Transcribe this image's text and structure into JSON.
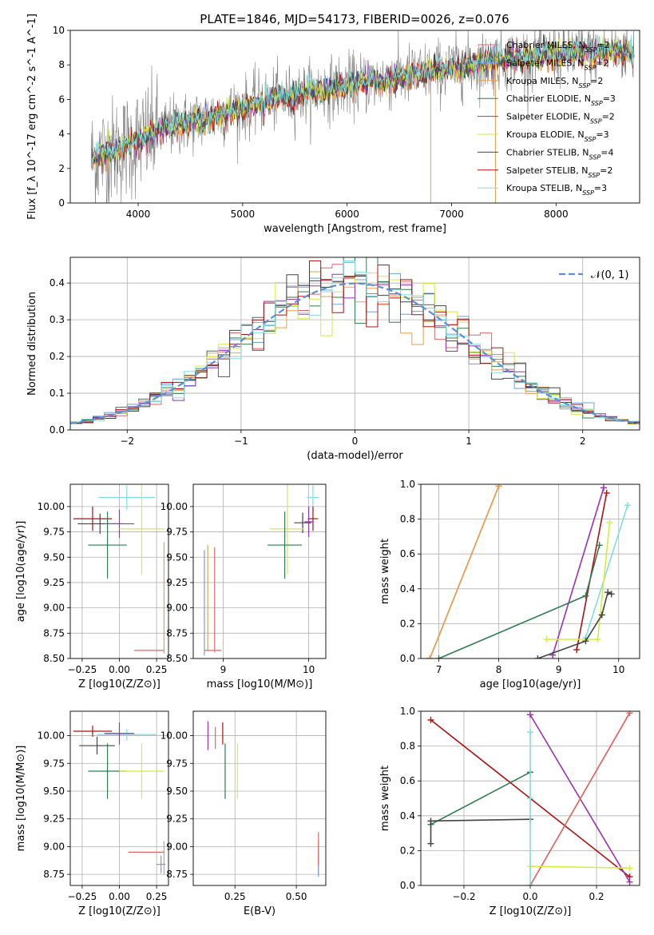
{
  "figure": {
    "title": "PLATE=1846, MJD=54173, FIBERID=0026, z=0.076",
    "colors": {
      "chabrier_miles": "#e06666",
      "salpeter_miles": "#6fa0e0",
      "kroupa_miles": "#e8a050",
      "chabrier_elodie": "#2e7d4f",
      "salpeter_elodie": "#9b2fb5",
      "kroupa_elodie": "#d4ee3a",
      "chabrier_stelib": "#444444",
      "salpeter_stelib": "#b01010",
      "kroupa_stelib": "#80dede",
      "data": "#808080",
      "gaussian": "#5b8fd9"
    }
  },
  "chart_data": [
    {
      "id": "spectrum",
      "type": "line",
      "title": "PLATE=1846, MJD=54173, FIBERID=0026, z=0.076",
      "xlabel": "wavelength [Angstrom, rest frame]",
      "ylabel": "Flux [f_λ 10^-17 erg cm^-2 s^-1 A^-1]",
      "xlim": [
        3350,
        8800
      ],
      "ylim": [
        0,
        10
      ],
      "xticks": [
        4000,
        5000,
        6000,
        7000,
        8000
      ],
      "yticks": [
        0,
        2,
        4,
        6,
        8,
        10
      ],
      "legend_position": "right",
      "legend": [
        {
          "key": "chabrier_miles",
          "label": "Chabrier MILES, N",
          "sub": "SSP",
          "tail": "=2"
        },
        {
          "key": "salpeter_miles",
          "label": "Salpeter MILES, N",
          "sub": "SSP",
          "tail": "=2"
        },
        {
          "key": "kroupa_miles",
          "label": "Kroupa MILES, N",
          "sub": "SSP",
          "tail": "=2"
        },
        {
          "key": "chabrier_elodie",
          "label": "Chabrier ELODIE, N",
          "sub": "SSP",
          "tail": "=3"
        },
        {
          "key": "salpeter_elodie",
          "label": "Salpeter ELODIE, N",
          "sub": "SSP",
          "tail": "=2"
        },
        {
          "key": "kroupa_elodie",
          "label": "Kroupa ELODIE, N",
          "sub": "SSP",
          "tail": "=3"
        },
        {
          "key": "chabrier_stelib",
          "label": "Chabrier STELIB, N",
          "sub": "SSP",
          "tail": "=4"
        },
        {
          "key": "salpeter_stelib",
          "label": "Salpeter STELIB, N",
          "sub": "SSP",
          "tail": "=2"
        },
        {
          "key": "kroupa_stelib",
          "label": "Kroupa STELIB, N",
          "sub": "SSP",
          "tail": "=3"
        }
      ],
      "model_continuum": {
        "x": [
          3550,
          3700,
          3900,
          4100,
          4300,
          4500,
          4700,
          4900,
          5100,
          5300,
          5500,
          5700,
          5900,
          6100,
          6300,
          6500,
          6700,
          6900,
          7100,
          7300,
          7500,
          7700,
          7900,
          8100,
          8300,
          8500,
          8750
        ],
        "y": [
          2.5,
          2.9,
          3.3,
          3.9,
          4.4,
          4.7,
          5.0,
          5.3,
          5.7,
          6.0,
          6.2,
          6.5,
          6.7,
          6.9,
          7.1,
          7.3,
          7.5,
          7.7,
          7.9,
          8.1,
          8.3,
          8.4,
          8.55,
          8.65,
          8.7,
          8.8,
          8.7
        ]
      }
    },
    {
      "id": "residuals",
      "type": "area",
      "xlabel": "(data-model)/error",
      "ylabel": "Normed distribution",
      "xlim": [
        -2.5,
        2.5
      ],
      "ylim": [
        0,
        0.47
      ],
      "xticks": [
        -2,
        -1,
        0,
        1,
        2
      ],
      "yticks": [
        0.0,
        0.1,
        0.2,
        0.3,
        0.4
      ],
      "grid": true,
      "legend_position": "top-right",
      "gaussian_label": "𝒩(0, 1)",
      "bins": {
        "start": -2.5,
        "width": 0.1
      }
    },
    {
      "id": "age_vs_Z",
      "type": "scatter",
      "xlabel": "Z [log10(Z/Z⊙)]",
      "ylabel": "age [log10(age/yr)]",
      "xlim": [
        -0.33,
        0.33
      ],
      "ylim": [
        8.5,
        10.22
      ],
      "xticks": [
        -0.25,
        0.0,
        0.25
      ],
      "yticks": [
        8.5,
        8.75,
        9.0,
        9.25,
        9.5,
        9.75,
        10.0
      ],
      "grid": true,
      "points": [
        {
          "key": "kroupa_stelib",
          "x": 0.05,
          "y": 10.09,
          "xerr": 0.19,
          "yerr": 0.12
        },
        {
          "key": "salpeter_stelib",
          "x": -0.18,
          "y": 9.88,
          "xerr": 0.13,
          "yerr": 0.12
        },
        {
          "key": "chabrier_stelib",
          "x": -0.13,
          "y": 9.83,
          "xerr": 0.15,
          "yerr": 0.1
        },
        {
          "key": "salpeter_elodie",
          "x": 0.0,
          "y": 9.83,
          "xerr": 0.1,
          "yerr": 0.14
        },
        {
          "key": "kroupa_elodie",
          "x": 0.15,
          "y": 9.78,
          "xerr": 0.15,
          "yerr": 0.45
        },
        {
          "key": "chabrier_elodie",
          "x": -0.08,
          "y": 9.62,
          "xerr": 0.13,
          "yerr": 0.33
        },
        {
          "key": "kroupa_miles",
          "x": 0.3,
          "y": 9.1,
          "xerr": 0.0,
          "yerr": 0.55
        },
        {
          "key": "chabrier_miles",
          "x": 0.2,
          "y": 8.58,
          "xerr": 0.1,
          "yerr": 0.0
        }
      ]
    },
    {
      "id": "age_vs_mass",
      "type": "scatter",
      "xlabel": "mass [log10(M/M⊙)]",
      "xlim": [
        8.65,
        10.2
      ],
      "ylim": [
        8.5,
        10.22
      ],
      "xticks": [
        9,
        10
      ],
      "yticks": [
        8.5,
        8.75,
        9.0,
        9.25,
        9.5,
        9.75,
        10.0
      ],
      "grid": true,
      "points": [
        {
          "key": "kroupa_stelib",
          "x": 10.05,
          "y": 10.09,
          "xerr": 0.07,
          "yerr": 0.12
        },
        {
          "key": "salpeter_stelib",
          "x": 10.05,
          "y": 9.88,
          "xerr": 0.06,
          "yerr": 0.12
        },
        {
          "key": "chabrier_stelib",
          "x": 9.93,
          "y": 9.84,
          "xerr": 0.1,
          "yerr": 0.1
        },
        {
          "key": "salpeter_elodie",
          "x": 10.0,
          "y": 9.85,
          "xerr": 0.05,
          "yerr": 0.15
        },
        {
          "key": "kroupa_elodie",
          "x": 9.75,
          "y": 9.78,
          "xerr": 0.2,
          "yerr": 0.45
        },
        {
          "key": "chabrier_elodie",
          "x": 9.72,
          "y": 9.62,
          "xerr": 0.2,
          "yerr": 0.33
        },
        {
          "key": "kroupa_miles",
          "x": 8.82,
          "y": 9.1,
          "xerr": 0.0,
          "yerr": 0.52
        },
        {
          "key": "chabrier_miles",
          "x": 8.9,
          "y": 9.08,
          "xerr": 0.0,
          "yerr": 0.52
        },
        {
          "key": "salpeter_miles",
          "x": 8.78,
          "y": 9.05,
          "xerr": 0.0,
          "yerr": 0.52
        },
        {
          "key": "chabrier_miles",
          "x": 8.88,
          "y": 8.58,
          "xerr": 0.1,
          "yerr": 0.0
        }
      ]
    },
    {
      "id": "massweight_vs_age",
      "type": "line",
      "xlabel": "age [log10(age/yr)]",
      "ylabel": "mass weight",
      "xlim": [
        6.7,
        10.35
      ],
      "ylim": [
        0,
        1
      ],
      "xticks": [
        7,
        8,
        9,
        10
      ],
      "yticks": [
        0.0,
        0.2,
        0.4,
        0.6,
        0.8,
        1.0
      ],
      "grid": true,
      "series": [
        {
          "key": "chabrier_miles",
          "x": [
            6.85,
            8.0
          ],
          "y": [
            0.0,
            0.99
          ]
        },
        {
          "key": "kroupa_miles",
          "x": [
            6.85,
            8.0
          ],
          "y": [
            0.0,
            0.99
          ]
        },
        {
          "key": "salpeter_elodie",
          "x": [
            8.9,
            9.75
          ],
          "y": [
            0.02,
            0.98
          ]
        },
        {
          "key": "salpeter_stelib",
          "x": [
            9.3,
            9.8
          ],
          "y": [
            0.05,
            0.95
          ]
        },
        {
          "key": "kroupa_stelib",
          "x": [
            9.45,
            10.15
          ],
          "y": [
            0.12,
            0.88
          ]
        },
        {
          "key": "kroupa_elodie",
          "x": [
            8.8,
            9.65,
            9.85
          ],
          "y": [
            0.11,
            0.11,
            0.78
          ]
        },
        {
          "key": "chabrier_elodie",
          "x": [
            7.0,
            9.45,
            9.68
          ],
          "y": [
            0.0,
            0.36,
            0.65
          ]
        },
        {
          "key": "chabrier_stelib",
          "x": [
            8.65,
            9.45,
            9.72,
            9.82,
            9.88
          ],
          "y": [
            0.0,
            0.1,
            0.25,
            0.38,
            0.37
          ]
        }
      ]
    },
    {
      "id": "mass_vs_Z",
      "type": "scatter",
      "xlabel": "Z [log10(Z/Z⊙)]",
      "ylabel": "mass [log10(M/M⊙)]",
      "xlim": [
        -0.33,
        0.33
      ],
      "ylim": [
        8.65,
        10.22
      ],
      "xticks": [
        -0.25,
        0.0,
        0.25
      ],
      "yticks": [
        8.75,
        9.0,
        9.25,
        9.5,
        9.75,
        10.0
      ],
      "grid": true,
      "points": [
        {
          "key": "kroupa_stelib",
          "x": 0.05,
          "y": 10.01,
          "xerr": 0.2,
          "yerr": 0.05
        },
        {
          "key": "salpeter_stelib",
          "x": -0.18,
          "y": 10.04,
          "xerr": 0.13,
          "yerr": 0.05
        },
        {
          "key": "salpeter_elodie",
          "x": 0.0,
          "y": 10.02,
          "xerr": 0.1,
          "yerr": 0.1
        },
        {
          "key": "chabrier_stelib",
          "x": -0.15,
          "y": 9.91,
          "xerr": 0.12,
          "yerr": 0.08
        },
        {
          "key": "chabrier_elodie",
          "x": -0.08,
          "y": 9.68,
          "xerr": 0.13,
          "yerr": 0.25
        },
        {
          "key": "kroupa_elodie",
          "x": 0.15,
          "y": 9.68,
          "xerr": 0.15,
          "yerr": 0.25
        },
        {
          "key": "chabrier_miles",
          "x": 0.18,
          "y": 8.95,
          "xerr": 0.12,
          "yerr": 0.0
        },
        {
          "key": "kroupa_miles",
          "x": 0.3,
          "y": 8.9,
          "xerr": 0.0,
          "yerr": 0.15
        },
        {
          "key": "salpeter_miles",
          "x": 0.28,
          "y": 8.84,
          "xerr": 0.03,
          "yerr": 0.08
        }
      ]
    },
    {
      "id": "mass_vs_ebv",
      "type": "scatter",
      "xlabel": "E(B-V)",
      "xlim": [
        0.08,
        0.62
      ],
      "ylim": [
        8.65,
        10.22
      ],
      "xticks": [
        0.25,
        0.5
      ],
      "yticks": [
        8.75,
        9.0,
        9.25,
        9.5,
        9.75,
        10.0
      ],
      "grid": true,
      "points": [
        {
          "key": "salpeter_elodie",
          "x": 0.14,
          "y": 10.0,
          "xerr": 0.0,
          "yerr": 0.13
        },
        {
          "key": "chabrier_miles",
          "x": 0.17,
          "y": 9.98,
          "xerr": 0.0,
          "yerr": 0.1
        },
        {
          "key": "salpeter_stelib",
          "x": 0.2,
          "y": 10.02,
          "xerr": 0.0,
          "yerr": 0.1
        },
        {
          "key": "chabrier_elodie",
          "x": 0.21,
          "y": 9.68,
          "xerr": 0.0,
          "yerr": 0.25
        },
        {
          "key": "kroupa_elodie",
          "x": 0.26,
          "y": 9.68,
          "xerr": 0.0,
          "yerr": 0.25
        },
        {
          "key": "kroupa_miles",
          "x": 0.59,
          "y": 8.9,
          "xerr": 0.0,
          "yerr": 0.15
        },
        {
          "key": "salpeter_miles",
          "x": 0.59,
          "y": 8.85,
          "xerr": 0.0,
          "yerr": 0.12
        },
        {
          "key": "chabrier_miles",
          "x": 0.59,
          "y": 8.98,
          "xerr": 0.0,
          "yerr": 0.15
        }
      ]
    },
    {
      "id": "massweight_vs_Z",
      "type": "line",
      "xlabel": "Z [log10(Z/Z⊙)]",
      "ylabel": "mass weight",
      "xlim": [
        -0.33,
        0.33
      ],
      "ylim": [
        0,
        1
      ],
      "xticks": [
        -0.2,
        0.0,
        0.2
      ],
      "yticks": [
        0.0,
        0.2,
        0.4,
        0.6,
        0.8,
        1.0
      ],
      "grid": true,
      "series": [
        {
          "key": "salpeter_stelib",
          "x": [
            -0.3,
            0.3
          ],
          "y": [
            0.95,
            0.05
          ]
        },
        {
          "key": "salpeter_elodie",
          "x": [
            0.0,
            0.3
          ],
          "y": [
            0.98,
            0.02
          ]
        },
        {
          "key": "kroupa_miles",
          "x": [
            0.0,
            0.3
          ],
          "y": [
            0.0,
            0.99
          ]
        },
        {
          "key": "chabrier_miles",
          "x": [
            0.0,
            0.3
          ],
          "y": [
            0.0,
            0.99
          ]
        },
        {
          "key": "kroupa_elodie",
          "x": [
            0.0,
            0.3
          ],
          "y": [
            0.11,
            0.1
          ]
        },
        {
          "key": "chabrier_elodie",
          "x": [
            -0.3,
            0.0
          ],
          "y": [
            0.35,
            0.65
          ]
        },
        {
          "key": "chabrier_stelib",
          "x": [
            -0.3,
            -0.3,
            0.0
          ],
          "y": [
            0.24,
            0.37,
            0.38
          ]
        },
        {
          "key": "kroupa_stelib",
          "x": [
            0.0,
            0.0,
            0.0
          ],
          "y": [
            0.0,
            0.5,
            0.88
          ]
        }
      ]
    }
  ]
}
